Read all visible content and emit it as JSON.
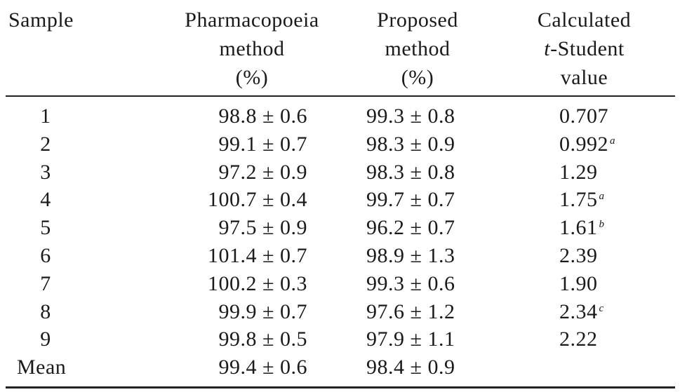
{
  "headers": {
    "sample": "Sample",
    "pharmacopoeia": [
      "Pharmacopoeia",
      "method",
      "(%)"
    ],
    "proposed": [
      "Proposed",
      "method",
      "(%)"
    ],
    "t_student": {
      "line1": "Calculated",
      "line2_italic": "t",
      "line2_rest": "-Student",
      "line3": "value"
    }
  },
  "rows": [
    {
      "sample": "1",
      "pharm": "98.8 ± 0.6",
      "prop": "99.3 ± 0.8",
      "t": "0.707",
      "fn": ""
    },
    {
      "sample": "2",
      "pharm": "99.1 ± 0.7",
      "prop": "98.3 ± 0.9",
      "t": "0.992",
      "fn": "a"
    },
    {
      "sample": "3",
      "pharm": "97.2 ± 0.9",
      "prop": "98.3 ± 0.8",
      "t": "1.29",
      "fn": ""
    },
    {
      "sample": "4",
      "pharm": "100.7 ± 0.4",
      "prop": "99.7 ± 0.7",
      "t": "1.75",
      "fn": "a"
    },
    {
      "sample": "5",
      "pharm": "97.5 ± 0.9",
      "prop": "96.2 ± 0.7",
      "t": "1.61",
      "fn": "b"
    },
    {
      "sample": "6",
      "pharm": "101.4 ± 0.7",
      "prop": "98.9 ± 1.3",
      "t": "2.39",
      "fn": ""
    },
    {
      "sample": "7",
      "pharm": "100.2 ± 0.3",
      "prop": "99.3 ± 0.6",
      "t": "1.90",
      "fn": ""
    },
    {
      "sample": "8",
      "pharm": "99.9 ± 0.7",
      "prop": "97.6 ± 1.2",
      "t": "2.34",
      "fn": "c"
    },
    {
      "sample": "9",
      "pharm": "99.8 ± 0.5",
      "prop": "97.9 ± 1.1",
      "t": "2.22",
      "fn": ""
    }
  ],
  "mean_row": {
    "sample": "Mean",
    "pharm": "99.4 ± 0.6",
    "prop": "98.4 ± 0.9",
    "t": ""
  }
}
